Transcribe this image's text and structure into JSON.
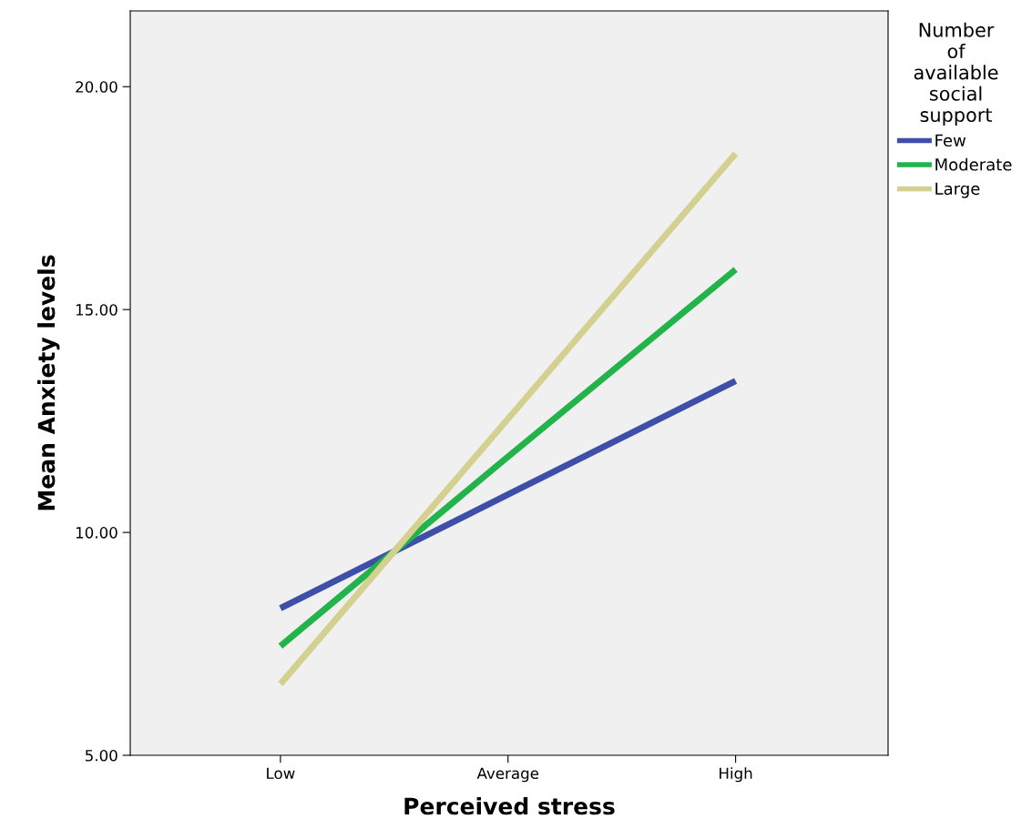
{
  "chart_data": {
    "type": "line",
    "xlabel": "Perceived stress",
    "ylabel": "Mean Anxiety levels",
    "legend_title": "Number\nof\navailable\nsocial\nsupport",
    "categories": [
      "Low",
      "Average",
      "High"
    ],
    "series": [
      {
        "name": "Few",
        "color": "#3d4fa8",
        "values": [
          8.3,
          10.85,
          13.4
        ]
      },
      {
        "name": "Moderate",
        "color": "#22b34a",
        "values": [
          7.45,
          11.7,
          15.9
        ]
      },
      {
        "name": "Large",
        "color": "#d4d08f",
        "values": [
          6.6,
          12.55,
          18.5
        ]
      }
    ],
    "ylim": [
      5,
      21.7
    ],
    "yticks": [
      {
        "value": 5,
        "label": "5.00"
      },
      {
        "value": 10,
        "label": "10.00"
      },
      {
        "value": 15,
        "label": "15.00"
      },
      {
        "value": 20,
        "label": "20.00"
      }
    ],
    "grid": false,
    "legend": "top right",
    "marker": "none",
    "line_style": "solid"
  }
}
